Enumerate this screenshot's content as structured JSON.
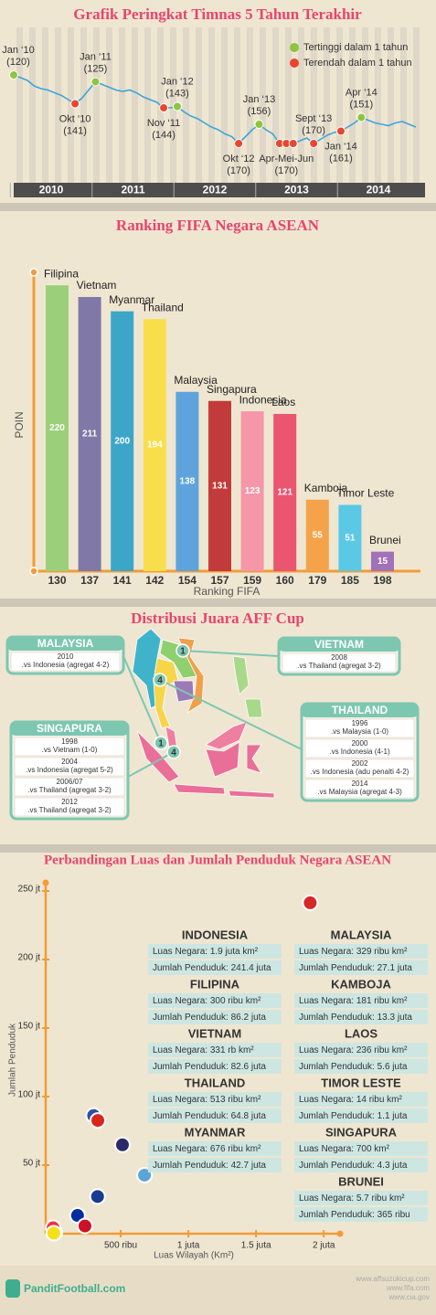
{
  "chart_data": [
    {
      "type": "line",
      "title": "Grafik Peringkat Timnas 5 Tahun Terakhir",
      "x": [
        "2010-01",
        "2010-02",
        "2010-03",
        "2010-04",
        "2010-05",
        "2010-06",
        "2010-07",
        "2010-08",
        "2010-09",
        "2010-10",
        "2010-11",
        "2010-12",
        "2011-01",
        "2011-02",
        "2011-03",
        "2011-04",
        "2011-05",
        "2011-06",
        "2011-07",
        "2011-08",
        "2011-09",
        "2011-10",
        "2011-11",
        "2011-12",
        "2012-01",
        "2012-02",
        "2012-03",
        "2012-04",
        "2012-05",
        "2012-06",
        "2012-07",
        "2012-08",
        "2012-09",
        "2012-10",
        "2012-11",
        "2012-12",
        "2013-01",
        "2013-02",
        "2013-03",
        "2013-04",
        "2013-05",
        "2013-06",
        "2013-07",
        "2013-08",
        "2013-09",
        "2013-10",
        "2013-11",
        "2013-12",
        "2014-01",
        "2014-02",
        "2014-03",
        "2014-04",
        "2014-05",
        "2014-06",
        "2014-07",
        "2014-08",
        "2014-09",
        "2014-10",
        "2014-11",
        "2014-12"
      ],
      "values": [
        120,
        122,
        124,
        128,
        130,
        131,
        133,
        135,
        138,
        141,
        137,
        131,
        125,
        127,
        129,
        131,
        132,
        131,
        133,
        136,
        138,
        140,
        144,
        144,
        143,
        147,
        150,
        152,
        155,
        158,
        160,
        163,
        165,
        170,
        165,
        160,
        156,
        160,
        163,
        170,
        170,
        170,
        168,
        166,
        170,
        167,
        164,
        162,
        161,
        158,
        155,
        151,
        153,
        155,
        156,
        157,
        155,
        154,
        156,
        158
      ],
      "color": "#3ba6dc",
      "ylim": [
        115,
        175
      ],
      "y_inverted": true,
      "xticks": [
        {
          "value": "2010-01",
          "label": "2010"
        },
        {
          "value": "2011-01",
          "label": "2011"
        },
        {
          "value": "2012-01",
          "label": "2012"
        },
        {
          "value": "2013-01",
          "label": "2013"
        },
        {
          "value": "2014-01",
          "label": "2014"
        }
      ],
      "legend": [
        {
          "name": "Tertinggi dalam 1 tahun",
          "color": "#8cc63f"
        },
        {
          "name": "Terendah dalam 1 tahun",
          "color": "#e8462e"
        }
      ],
      "legend_position": "upper right",
      "annotations": [
        {
          "x": [
            "2010-01"
          ],
          "label": "Jan ‘10",
          "value_label": "(120)",
          "color": "#8cc63f"
        },
        {
          "x": [
            "2010-10"
          ],
          "label": "Okt ‘10",
          "value_label": "(141)",
          "color": "#e8462e"
        },
        {
          "x": [
            "2011-01"
          ],
          "label": "Jan ‘11",
          "value_label": "(125)",
          "color": "#8cc63f"
        },
        {
          "x": [
            "2011-11"
          ],
          "label": "Nov ‘11",
          "value_label": "(144)",
          "color": "#e8462e"
        },
        {
          "x": [
            "2012-01"
          ],
          "label": "Jan ‘12",
          "value_label": "(143)",
          "color": "#8cc63f"
        },
        {
          "x": [
            "2012-10"
          ],
          "label": "Okt ‘12",
          "value_label": "(170)",
          "color": "#e8462e"
        },
        {
          "x": [
            "2013-01"
          ],
          "label": "Jan ‘13",
          "value_label": "(156)",
          "color": "#8cc63f"
        },
        {
          "x": [
            "2013-04",
            "2013-05",
            "2013-06"
          ],
          "label": "Apr-Mei-Jun",
          "value_label": "(170)",
          "color": "#e8462e"
        },
        {
          "x": [
            "2013-09"
          ],
          "label": "Sept ‘13",
          "value_label": "(170)",
          "color": "#e8462e"
        },
        {
          "x": [
            "2014-01"
          ],
          "label": "Jan ‘14",
          "value_label": "(161)",
          "color": "#e8462e"
        },
        {
          "x": [
            "2014-04"
          ],
          "label": "Apr ‘14",
          "value_label": "(151)",
          "color": "#8cc63f"
        }
      ]
    },
    {
      "type": "bar",
      "title": "Ranking FIFA Negara ASEAN",
      "categories": [
        "Filipina",
        "Vietnam",
        "Myanmar",
        "Thailand",
        "Malaysia",
        "Singapura",
        "Indonesia",
        "Laos",
        "Kamboja",
        "Timor Leste",
        "Brunei"
      ],
      "values": [
        220,
        211,
        200,
        194,
        138,
        131,
        123,
        121,
        55,
        51,
        15
      ],
      "rankings": [
        130,
        137,
        141,
        142,
        154,
        157,
        159,
        160,
        179,
        185,
        198
      ],
      "colors": [
        "#9ccf7a",
        "#8079a8",
        "#3ba6c8",
        "#f9de4b",
        "#5fa3dc",
        "#c23b3b",
        "#f597a8",
        "#ea5570",
        "#f5a34a",
        "#5bc8e6",
        "#a272b8"
      ],
      "ylim": [
        0,
        230
      ],
      "ylabel": "POIN",
      "xlabel": "Ranking FIFA"
    },
    {
      "type": "scatter",
      "title": "Perbandingan Luas dan Jumlah Penduduk Negara ASEAN",
      "names": [
        "INDONESIA",
        "FILIPINA",
        "VIETNAM",
        "THAILAND",
        "MYANMAR",
        "MALAYSIA",
        "KAMBOJA",
        "LAOS",
        "TIMOR LESTE",
        "SINGAPURA",
        "BRUNEI"
      ],
      "x": [
        1900000,
        300000,
        331000,
        513000,
        676000,
        329000,
        181000,
        236000,
        14000,
        700,
        5700
      ],
      "values": [
        241.4,
        86.2,
        82.6,
        64.8,
        42.7,
        27.1,
        13.3,
        5.6,
        1.1,
        4.3,
        0.365
      ],
      "x_labels": [
        "Luas Negara: 1.9 juta km²",
        "Luas Negara: 300 ribu km²",
        "Luas Negara: 331 rb km²",
        "Luas Negara: 513 ribu km²",
        "Luas Negara: 676 ribu km²",
        "Luas Negara: 329 ribu km²",
        "Luas Negara: 181 ribu km²",
        "Luas Negara: 236 ribu km²",
        "Luas Negara: 14 ribu km²",
        "Luas Negara: 700 km²",
        "Luas Negara: 5.7 ribu km²"
      ],
      "y_labels": [
        "Jumlah Penduduk: 241.4 juta",
        "Jumlah Penduduk: 86.2 juta",
        "Jumlah Penduduk: 82.6 juta",
        "Jumlah Penduduk: 64.8 juta",
        "Jumlah Penduduk: 42.7 juta",
        "Jumlah Penduduk: 27.1 juta",
        "Jumlah Penduduk: 13.3 juta",
        "Jumlah Penduduk: 5.6 juta",
        "Jumlah Penduduk: 1.1 juta",
        "Jumlah Penduduk: 4.3 juta",
        "Jumlah Penduduk: 365 ribu"
      ],
      "colors": [
        "#d62828",
        "#2b50a0",
        "#da251d",
        "#2d2a6a",
        "#5aa6d6",
        "#1a3a8f",
        "#032ea1",
        "#ce1126",
        "#222222",
        "#ef3340",
        "#f7e017"
      ],
      "xlim": [
        0,
        2100000
      ],
      "ylim": [
        0,
        250
      ],
      "xticks": [
        {
          "value": 500000,
          "label": "500 ribu"
        },
        {
          "value": 1000000,
          "label": "1 juta"
        },
        {
          "value": 1500000,
          "label": "1.5 juta"
        },
        {
          "value": 2000000,
          "label": "2 juta"
        }
      ],
      "yticks": [
        {
          "value": 50,
          "label": "50 jt"
        },
        {
          "value": 100,
          "label": "100 jt"
        },
        {
          "value": 150,
          "label": "150 jt"
        },
        {
          "value": 200,
          "label": "200 jt"
        },
        {
          "value": 250,
          "label": "250 jt"
        }
      ],
      "xlabel": "Luas Wilayah (Km²)",
      "ylabel": "Jumlah Penduduk"
    }
  ],
  "aff_cup": {
    "title": "Distribusi Juara AFF Cup",
    "champions": [
      {
        "country": "MALAYSIA",
        "count": 1,
        "finals": [
          {
            "year": "2010",
            "opponent": ".vs Indonesia (agregat 4-2)"
          }
        ]
      },
      {
        "country": "VIETNAM",
        "count": 1,
        "finals": [
          {
            "year": "2008",
            "opponent": ".vs Thailand (agregat 3-2)"
          }
        ]
      },
      {
        "country": "THAILAND",
        "count": 4,
        "finals": [
          {
            "year": "1996",
            "opponent": ".vs Malaysia (1-0)"
          },
          {
            "year": "2000",
            "opponent": ".vs Indonesia (4-1)"
          },
          {
            "year": "2002",
            "opponent": ".vs Indonesia (adu penalti 4-2)"
          },
          {
            "year": "2014",
            "opponent": ".vs Malaysia (agregat 4-3)"
          }
        ]
      },
      {
        "country": "SINGAPURA",
        "count": 4,
        "finals": [
          {
            "year": "1998",
            "opponent": ".vs Vietnam (1-0)"
          },
          {
            "year": "2004",
            "opponent": ".vs Indonesia (agregat 5-2)"
          },
          {
            "year": "2006/07",
            "opponent": ".vs Thailand (agregat 3-2)"
          },
          {
            "year": "2012",
            "opponent": ".vs Thailand (agregat 3-2)"
          }
        ]
      }
    ]
  },
  "footer": {
    "brand": "PanditFootball.com",
    "sources": [
      "www.affsuzukicup.com",
      "www.fifa.com",
      "www.cia.gov"
    ]
  }
}
